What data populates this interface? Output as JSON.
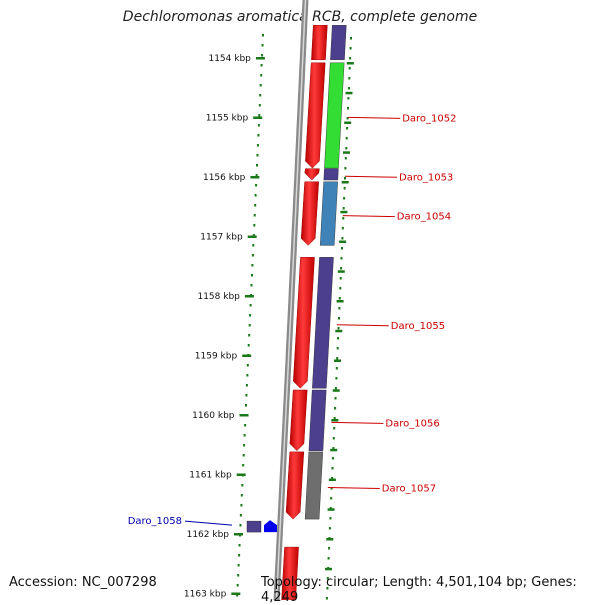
{
  "title": "Dechloromonas aromatica RCB, complete genome",
  "footer": {
    "accession": "Accession: NC_007298",
    "topology": "Topology: circular; Length: 4,501,104 bp; Genes: 4,249"
  },
  "colors": {
    "forward_gene": "#ff0000",
    "cog_purple": "#4b3f8e",
    "cog_green": "#33dd33",
    "cog_blue": "#3f82b8",
    "cog_gray": "#6e6e6e",
    "tick_green": "#1a7a1a",
    "label_red": "#cc0000",
    "label_blue": "#0000aa",
    "backbone": "#8a8a8a"
  },
  "ticks": [
    {
      "label": "1154 kbp",
      "kbp": 1154
    },
    {
      "label": "1155 kbp",
      "kbp": 1155
    },
    {
      "label": "1156 kbp",
      "kbp": 1156
    },
    {
      "label": "1157 kbp",
      "kbp": 1157
    },
    {
      "label": "1158 kbp",
      "kbp": 1158
    },
    {
      "label": "1159 kbp",
      "kbp": 1159
    },
    {
      "label": "1160 kbp",
      "kbp": 1160
    },
    {
      "label": "1161 kbp",
      "kbp": 1161
    },
    {
      "label": "1162 kbp",
      "kbp": 1162
    },
    {
      "label": "1163 kbp",
      "kbp": 1163
    }
  ],
  "genes": [
    {
      "name": "Daro_1052",
      "start_kbp": 1154.08,
      "end_kbp": 1155.85,
      "strand": "forward",
      "cog": "green",
      "labeled": true
    },
    {
      "name": "Daro_1053",
      "start_kbp": 1155.86,
      "end_kbp": 1156.05,
      "strand": "forward",
      "cog": "purple",
      "labeled": true
    },
    {
      "name": "Daro_1054",
      "start_kbp": 1156.08,
      "end_kbp": 1157.15,
      "strand": "forward",
      "cog": "blue",
      "labeled": true
    },
    {
      "name": "Daro_1055",
      "start_kbp": 1157.35,
      "end_kbp": 1159.55,
      "strand": "forward",
      "cog": "purple",
      "labeled": true
    },
    {
      "name": "Daro_1056",
      "start_kbp": 1159.58,
      "end_kbp": 1160.6,
      "strand": "forward",
      "cog": "purple",
      "labeled": true
    },
    {
      "name": "Daro_1057",
      "start_kbp": 1160.62,
      "end_kbp": 1161.75,
      "strand": "forward",
      "cog": "gray",
      "labeled": true
    },
    {
      "name": "Daro_1058",
      "start_kbp": 1161.8,
      "end_kbp": 1162.05,
      "strand": "reverse",
      "cog": "purple",
      "labeled": true
    }
  ]
}
